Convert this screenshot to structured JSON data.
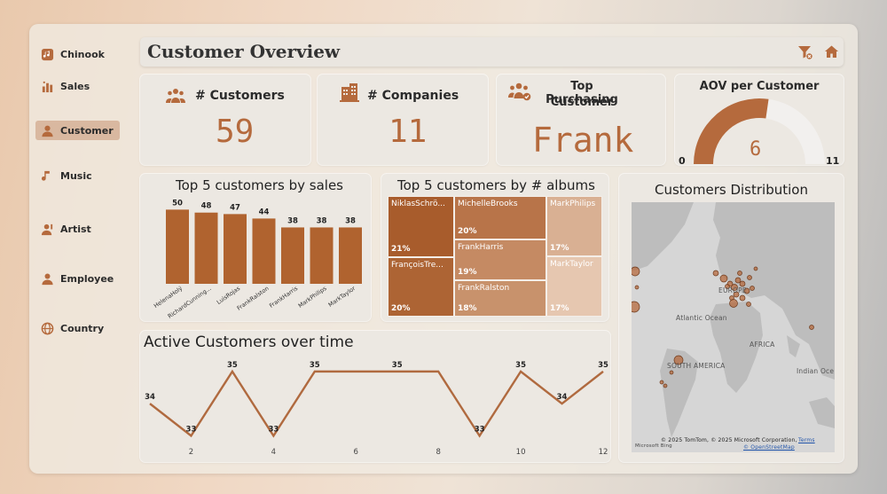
{
  "nav": {
    "items": [
      {
        "label": "Chinook",
        "icon": "app-logo-icon"
      },
      {
        "label": "Sales",
        "icon": "bar-chart-icon"
      },
      {
        "label": "Customer",
        "icon": "person-icon",
        "active": true
      },
      {
        "label": "Music",
        "icon": "music-note-icon"
      },
      {
        "label": "Artist",
        "icon": "artist-icon"
      },
      {
        "label": "Employee",
        "icon": "employee-icon"
      },
      {
        "label": "Country",
        "icon": "globe-icon"
      }
    ]
  },
  "header": {
    "title": "Customer Overview",
    "filter_icon": "filter-icon",
    "home_icon": "home-icon"
  },
  "kpis": {
    "customers": {
      "title": "# Customers",
      "value": "59"
    },
    "companies": {
      "title": "# Companies",
      "value": "11"
    },
    "top_customer": {
      "title_line1": "Top Purchasing",
      "title_line2": "Customer",
      "value": "Frank"
    },
    "aov": {
      "title": "AOV per Customer",
      "value": "6",
      "min": "0",
      "max": "11",
      "level": 6,
      "range": [
        0,
        11
      ]
    }
  },
  "colors": {
    "accent": "#b56a3d",
    "bar": "#b0632f",
    "gauge_track": "#f2f0ee",
    "line": "#b06a3f"
  },
  "chart_data": [
    {
      "type": "bar",
      "title": "Top 5 customers by sales",
      "categories": [
        "HelenaHolý",
        "RichardCunning...",
        "LuisRojas",
        "FrankRalston",
        "FrankHarris",
        "MarkPhilips",
        "MarkTaylor"
      ],
      "values": [
        50,
        48,
        47,
        44,
        38,
        38,
        38
      ],
      "ylim": [
        0,
        55
      ]
    },
    {
      "type": "treemap",
      "title": "Top 5 customers by # albums",
      "items": [
        {
          "name": "NiklasSchrö...",
          "pct": "21%",
          "value": 21
        },
        {
          "name": "FrançoisTre...",
          "pct": "20%",
          "value": 20
        },
        {
          "name": "MichelleBrooks",
          "pct": "20%",
          "value": 20
        },
        {
          "name": "FrankHarris",
          "pct": "19%",
          "value": 19
        },
        {
          "name": "FrankRalston",
          "pct": "18%",
          "value": 18
        },
        {
          "name": "MarkPhilips",
          "pct": "17%",
          "value": 17
        },
        {
          "name": "MarkTaylor",
          "pct": "17%",
          "value": 17
        }
      ]
    },
    {
      "type": "line",
      "title": "Active Customers over time",
      "x": [
        1,
        2,
        3,
        4,
        5,
        6,
        7,
        8,
        9,
        10,
        11,
        12
      ],
      "y": [
        34,
        33,
        35,
        33,
        35,
        35,
        35,
        35,
        33,
        35,
        34,
        35
      ],
      "point_labels": [
        "34",
        "33",
        "35",
        "33",
        "35",
        "",
        "35",
        "",
        "33",
        "35",
        "34",
        "35"
      ],
      "xticks": [
        "2",
        "4",
        "6",
        "8",
        "10",
        "12"
      ],
      "ylim": [
        32.9,
        35.3
      ]
    }
  ],
  "map": {
    "title": "Customers Distribution",
    "labels": {
      "europe": "EUROPE",
      "atlantic": "Atlantic Ocean",
      "africa": "AFRICA",
      "south_america": "SOUTH AMERICA",
      "indian": "Indian Oce"
    },
    "attribution": "© 2025 TomTom, © 2025 Microsoft Corporation,",
    "terms": "Terms",
    "osm": "© OpenStreetMap",
    "provider": "Microsoft Bing"
  }
}
